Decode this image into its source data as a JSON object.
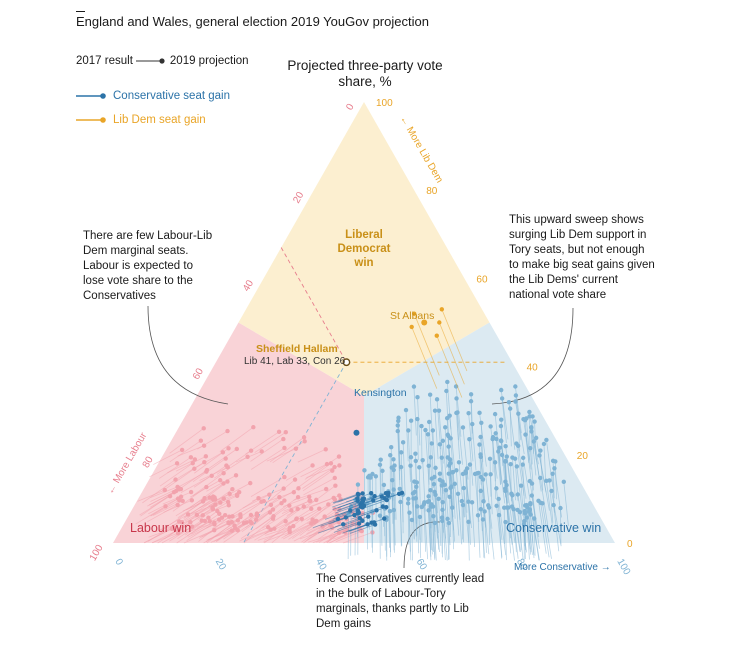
{
  "header": "England and Wales, general election 2019 YouGov projection",
  "legend": {
    "result_2017": "2017 result",
    "projection_2019": "2019 projection",
    "con_gain": "Conservative seat gain",
    "ld_gain": "Lib Dem seat gain"
  },
  "colors": {
    "labour_zone": "#f9d3d7",
    "ld_zone": "#fcefd0",
    "con_zone": "#dceaf2",
    "labour": "#f2a3ad",
    "con": "#7fb3d4",
    "con_gain": "#2c73a8",
    "ld_gain": "#e9a528"
  },
  "chart_data": {
    "type": "scatter",
    "title": "Projected three-party vote share, %",
    "axes": {
      "lib_dem": {
        "label": "← More Lib Dem",
        "ticks": [
          "0",
          "20",
          "40",
          "60",
          "80",
          "100"
        ]
      },
      "labour": {
        "label": "← More Labour",
        "ticks": [
          "0",
          "20",
          "40",
          "60",
          "80",
          "100"
        ]
      },
      "conservative": {
        "label": "More Conservative →",
        "ticks": [
          "0",
          "20",
          "40",
          "60",
          "80",
          "100"
        ]
      }
    },
    "zones": [
      "Labour win",
      "Liberal Democrat win",
      "Conservative win"
    ],
    "annotations": {
      "sheffield_title": "Sheffield Hallam",
      "sheffield_values": "Lib 41, Lab 33, Con 26",
      "st_albans": "St Albans",
      "kensington": "Kensington"
    },
    "highlighted": [
      {
        "name": "Sheffield Hallam",
        "lab": 33,
        "ld": 41,
        "con": 26
      },
      {
        "name": "St Albans",
        "lab": 13,
        "ld": 50,
        "con": 37
      },
      {
        "name": "Kensington",
        "lab": 39,
        "ld": 25,
        "con": 36
      }
    ]
  },
  "notes": {
    "left": "There are few Labour-Lib Dem marginal seats. Labour is expected to lose vote share to the Conservatives",
    "right": "This upward sweep shows surging Lib Dem support in Tory seats, but not enough to make big seat gains given the Lib Dems' current national vote share",
    "bottom": "The Conservatives currently lead in the bulk of Labour-Tory marginals, thanks partly to Lib Dem gains"
  }
}
